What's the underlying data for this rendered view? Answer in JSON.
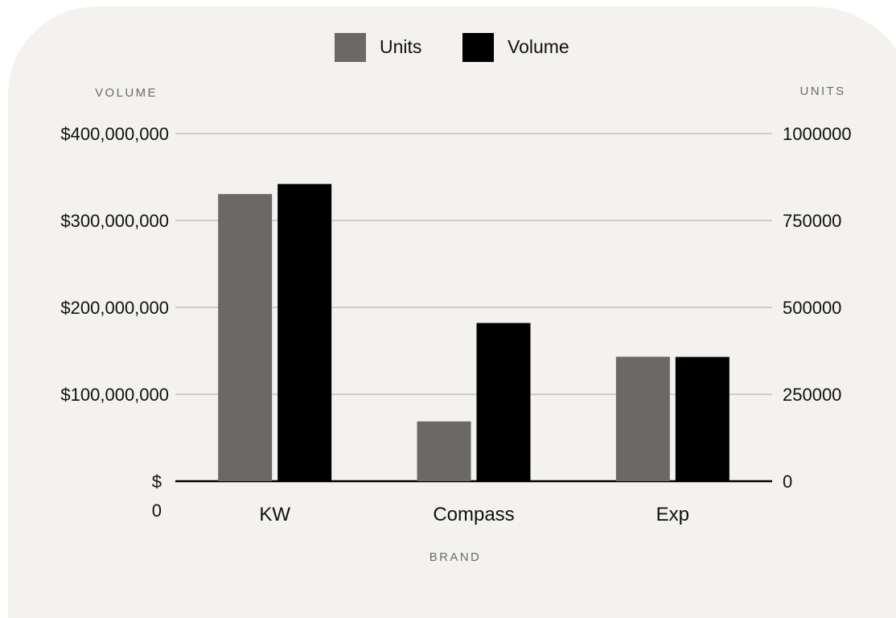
{
  "chart_data": {
    "type": "bar",
    "categories": [
      "KW",
      "Compass",
      "Exp"
    ],
    "series": [
      {
        "name": "Units",
        "axis": "right",
        "color": "#6a6967",
        "values": [
          826000,
          172000,
          358000
        ]
      },
      {
        "name": "Volume",
        "axis": "left",
        "color": "#000000",
        "values": [
          342000000,
          182000000,
          143000000
        ]
      }
    ],
    "xlabel": "BRAND",
    "ylabel_left": "VOLUME",
    "ylabel_right": "UNITS",
    "ylim_left": [
      0,
      400000000
    ],
    "ylim_right": [
      0,
      1000000
    ],
    "left_ticks": [
      {
        "value": 0,
        "label": "$",
        "label_line2": "0"
      },
      {
        "value": 100000000,
        "label": "$100,000,000"
      },
      {
        "value": 200000000,
        "label": "$200,000,000"
      },
      {
        "value": 300000000,
        "label": "$300,000,000"
      },
      {
        "value": 400000000,
        "label": "$400,000,000"
      }
    ],
    "right_ticks": [
      {
        "value": 0,
        "label": "0"
      },
      {
        "value": 250000,
        "label": "250000"
      },
      {
        "value": 500000,
        "label": "500000"
      },
      {
        "value": 750000,
        "label": "750000"
      },
      {
        "value": 1000000,
        "label": "1000000"
      }
    ],
    "grid": true,
    "legend_position": "top-center"
  }
}
